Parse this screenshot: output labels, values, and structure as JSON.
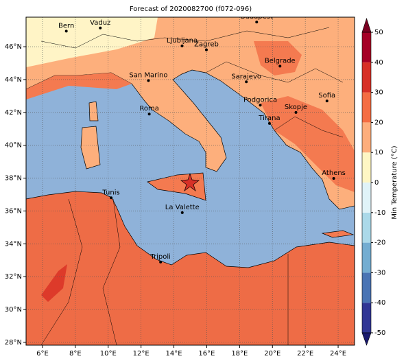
{
  "title": "Forecast of 2020082700 (f072-096)",
  "map": {
    "xlim": [
      5,
      25
    ],
    "ylim": [
      27.83,
      47.8
    ],
    "xticks": [
      {
        "value": 6,
        "label": "6°E"
      },
      {
        "value": 8,
        "label": "8°E"
      },
      {
        "value": 10,
        "label": "10°E"
      },
      {
        "value": 12,
        "label": "12°E"
      },
      {
        "value": 14,
        "label": "14°E"
      },
      {
        "value": 16,
        "label": "16°E"
      },
      {
        "value": 18,
        "label": "18°E"
      },
      {
        "value": 20,
        "label": "20°E"
      },
      {
        "value": 22,
        "label": "22°E"
      },
      {
        "value": 24,
        "label": "24°E"
      }
    ],
    "yticks": [
      {
        "value": 28,
        "label": "28°N"
      },
      {
        "value": 30,
        "label": "30°N"
      },
      {
        "value": 32,
        "label": "32°N"
      },
      {
        "value": 34,
        "label": "34°N"
      },
      {
        "value": 36,
        "label": "36°N"
      },
      {
        "value": 38,
        "label": "38°N"
      },
      {
        "value": 40,
        "label": "40°N"
      },
      {
        "value": 42,
        "label": "42°N"
      },
      {
        "value": 44,
        "label": "44°N"
      },
      {
        "value": 46,
        "label": "46°N"
      }
    ],
    "grid": true,
    "cities": [
      {
        "name": "Bern",
        "lon": 7.45,
        "lat": 46.95
      },
      {
        "name": "Vaduz",
        "lon": 9.52,
        "lat": 47.14
      },
      {
        "name": "Budapest",
        "lon": 19.04,
        "lat": 47.5
      },
      {
        "name": "Ljubljana",
        "lon": 14.5,
        "lat": 46.05
      },
      {
        "name": "Zagreb",
        "lon": 15.98,
        "lat": 45.81
      },
      {
        "name": "Belgrade",
        "lon": 20.46,
        "lat": 44.82
      },
      {
        "name": "San Marino",
        "lon": 12.45,
        "lat": 43.94
      },
      {
        "name": "Sarajevo",
        "lon": 18.41,
        "lat": 43.86
      },
      {
        "name": "Sofia",
        "lon": 23.32,
        "lat": 42.7
      },
      {
        "name": "Roma",
        "lon": 12.5,
        "lat": 41.9
      },
      {
        "name": "Podgorica",
        "lon": 19.26,
        "lat": 42.44
      },
      {
        "name": "Skopje",
        "lon": 21.43,
        "lat": 42.0
      },
      {
        "name": "Tirana",
        "lon": 19.82,
        "lat": 41.33
      },
      {
        "name": "Athens",
        "lon": 23.73,
        "lat": 37.98
      },
      {
        "name": "Tunis",
        "lon": 10.18,
        "lat": 36.8
      },
      {
        "name": "La Valette",
        "lon": 14.51,
        "lat": 35.9
      },
      {
        "name": "Tripoli",
        "lon": 13.19,
        "lat": 32.89
      }
    ]
  },
  "colorbar": {
    "label": "Min Temperature (°C)",
    "ticks": [
      -50,
      -40,
      -30,
      -20,
      -10,
      0,
      10,
      20,
      30,
      40,
      50
    ],
    "colors": [
      "#313695",
      "#4a74b4",
      "#74add1",
      "#abd9e9",
      "#e0f3f8",
      "#fef6c4",
      "#fdae7c",
      "#f46d43",
      "#d73027",
      "#a50026"
    ]
  }
}
